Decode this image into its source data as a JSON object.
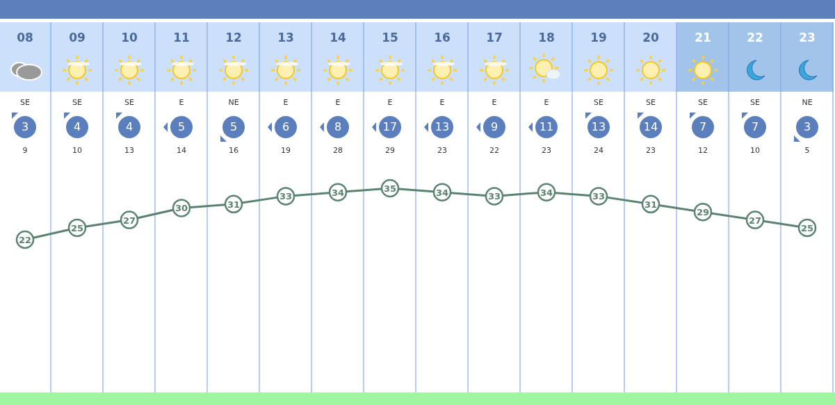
{
  "chart_data": {
    "type": "line",
    "categories": [
      "08",
      "09",
      "10",
      "11",
      "12",
      "13",
      "14",
      "15",
      "16",
      "17",
      "18",
      "19",
      "20",
      "21",
      "22",
      "23"
    ],
    "series": [
      {
        "color": "#5a8270",
        "values": [
          22,
          25,
          27,
          30,
          31,
          33,
          34,
          35,
          34,
          33,
          34,
          33,
          31,
          29,
          27,
          25
        ]
      }
    ],
    "data_labels": true,
    "marker": "circle",
    "grid": "x",
    "annotations": [
      "SE",
      "3",
      "9",
      "SE",
      "4",
      "10",
      "SE",
      "4",
      "13",
      "E",
      "5",
      "14",
      "NE",
      "5",
      "16",
      "E",
      "6",
      "19",
      "E",
      "8",
      "28",
      "E",
      "17",
      "29",
      "E",
      "13",
      "23",
      "E",
      "9",
      "22",
      "E",
      "11",
      "23",
      "SE",
      "13",
      "24",
      "SE",
      "14",
      "23",
      "SE",
      "7",
      "12",
      "SE",
      "7",
      "10",
      "NE",
      "3",
      "5"
    ]
  }
}
